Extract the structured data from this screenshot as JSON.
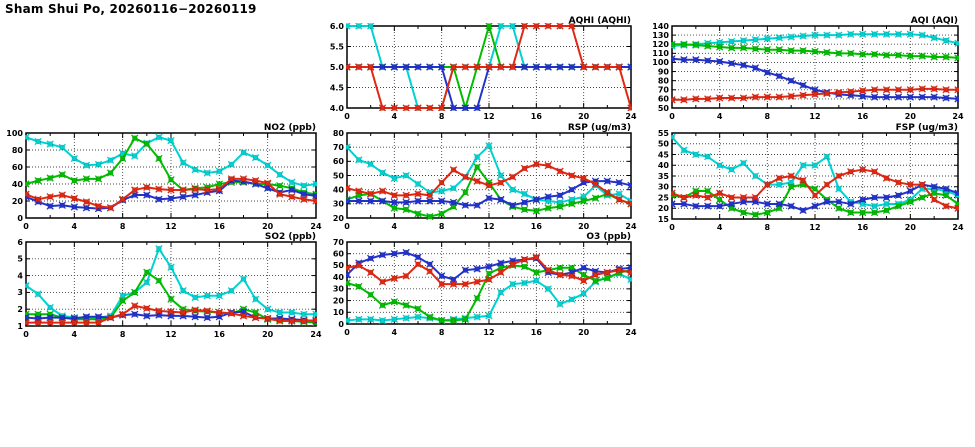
{
  "page_title": "Sham Shui Po, 20260116−20260119",
  "x_axis": {
    "min": 0,
    "max": 24,
    "major_ticks": [
      0,
      4,
      8,
      12,
      16,
      20,
      24
    ],
    "minor_ticks": [
      2,
      6,
      10,
      14,
      18,
      22
    ]
  },
  "series_colors": {
    "cyan": "#00d2d2",
    "green": "#00bd00",
    "blue": "#2233cc",
    "red": "#e02812"
  },
  "chart_data": [
    {
      "id": "aqhi",
      "type": "line",
      "title": "AQHI (AQHI)",
      "ylim": [
        4,
        6
      ],
      "yticks": [
        4,
        4.5,
        5,
        5.5,
        6
      ],
      "ytick_labels": [
        "4.0",
        "4.5",
        "5.0",
        "5.5",
        "6.0"
      ],
      "x": [
        0,
        1,
        2,
        3,
        4,
        5,
        6,
        7,
        8,
        9,
        10,
        11,
        12,
        13,
        14,
        15,
        16,
        17,
        18,
        19,
        20,
        21,
        22,
        23,
        24
      ],
      "series": [
        {
          "name": "cyan",
          "color": "#00d2d2",
          "values": [
            6,
            6,
            6,
            5,
            5,
            5,
            4,
            4,
            4,
            5,
            5,
            5,
            5,
            6,
            6,
            5,
            5,
            5,
            5,
            5,
            5,
            5,
            5,
            5,
            5
          ]
        },
        {
          "name": "green",
          "color": "#00bd00",
          "values": [
            5,
            5,
            5,
            5,
            5,
            5,
            5,
            5,
            5,
            5,
            4,
            5,
            6,
            5,
            5,
            5,
            5,
            5,
            5,
            5,
            5,
            5,
            5,
            5,
            5
          ]
        },
        {
          "name": "blue",
          "color": "#2233cc",
          "values": [
            5,
            5,
            5,
            5,
            5,
            5,
            5,
            5,
            5,
            4,
            4,
            4,
            5,
            5,
            5,
            5,
            5,
            5,
            5,
            5,
            5,
            5,
            5,
            5,
            5
          ]
        },
        {
          "name": "red",
          "color": "#e02812",
          "values": [
            5,
            5,
            5,
            4,
            4,
            4,
            4,
            4,
            4,
            5,
            5,
            5,
            5,
            5,
            5,
            6,
            6,
            6,
            6,
            6,
            5,
            5,
            5,
            5,
            4
          ]
        }
      ]
    },
    {
      "id": "aqi",
      "type": "line",
      "title": "AQI (AQI)",
      "ylim": [
        50,
        140
      ],
      "yticks": [
        50,
        60,
        70,
        80,
        90,
        100,
        110,
        120,
        130,
        140
      ],
      "ytick_labels": [
        "50",
        "60",
        "70",
        "80",
        "90",
        "100",
        "110",
        "120",
        "130",
        "140"
      ],
      "x": [
        0,
        1,
        2,
        3,
        4,
        5,
        6,
        7,
        8,
        9,
        10,
        11,
        12,
        13,
        14,
        15,
        16,
        17,
        18,
        19,
        20,
        21,
        22,
        23,
        24
      ],
      "series": [
        {
          "name": "cyan",
          "color": "#00d2d2",
          "values": [
            118,
            119,
            120,
            121,
            122,
            123,
            124,
            125,
            126,
            127,
            128,
            129,
            130,
            130,
            130,
            131,
            131,
            131,
            131,
            131,
            131,
            130,
            127,
            124,
            121
          ]
        },
        {
          "name": "green",
          "color": "#00bd00",
          "values": [
            120,
            120,
            119,
            118,
            117,
            116,
            116,
            115,
            114,
            114,
            113,
            113,
            112,
            111,
            110,
            110,
            109,
            109,
            108,
            108,
            107,
            107,
            106,
            106,
            105
          ]
        },
        {
          "name": "blue",
          "color": "#2233cc",
          "values": [
            104,
            103,
            103,
            102,
            101,
            99,
            97,
            94,
            89,
            85,
            80,
            75,
            70,
            67,
            65,
            64,
            63,
            62,
            62,
            62,
            62,
            62,
            62,
            61,
            60
          ]
        },
        {
          "name": "red",
          "color": "#e02812",
          "values": [
            59,
            59,
            60,
            60,
            61,
            61,
            61,
            62,
            62,
            62,
            63,
            64,
            65,
            66,
            67,
            68,
            69,
            70,
            70,
            70,
            70,
            71,
            71,
            70,
            70
          ]
        }
      ]
    },
    {
      "id": "no2",
      "type": "line",
      "title": "NO2 (ppb)",
      "ylim": [
        0,
        100
      ],
      "yticks": [
        0,
        20,
        40,
        60,
        80,
        100
      ],
      "ytick_labels": [
        "0",
        "20",
        "40",
        "60",
        "80",
        "100"
      ],
      "x": [
        0,
        1,
        2,
        3,
        4,
        5,
        6,
        7,
        8,
        9,
        10,
        11,
        12,
        13,
        14,
        15,
        16,
        17,
        18,
        19,
        20,
        21,
        22,
        23,
        24
      ],
      "series": [
        {
          "name": "cyan",
          "color": "#00d2d2",
          "values": [
            95,
            90,
            87,
            83,
            70,
            62,
            63,
            68,
            76,
            73,
            88,
            95,
            91,
            65,
            57,
            53,
            55,
            63,
            77,
            71,
            62,
            51,
            42,
            38,
            40
          ]
        },
        {
          "name": "green",
          "color": "#00bd00",
          "values": [
            40,
            44,
            47,
            51,
            44,
            46,
            46,
            53,
            70,
            94,
            87,
            70,
            45,
            33,
            35,
            36,
            40,
            42,
            42,
            40,
            40,
            38,
            35,
            30,
            28
          ]
        },
        {
          "name": "blue",
          "color": "#2233cc",
          "values": [
            25,
            19,
            14,
            15,
            13,
            12,
            11,
            12,
            21,
            27,
            27,
            22,
            23,
            25,
            27,
            30,
            32,
            44,
            43,
            40,
            35,
            30,
            33,
            28,
            26
          ]
        },
        {
          "name": "red",
          "color": "#e02812",
          "values": [
            28,
            22,
            25,
            27,
            23,
            19,
            14,
            12,
            22,
            33,
            36,
            34,
            33,
            33,
            34,
            33,
            34,
            46,
            46,
            44,
            41,
            28,
            25,
            22,
            20
          ]
        }
      ]
    },
    {
      "id": "rsp",
      "type": "line",
      "title": "RSP (ug/m3)",
      "ylim": [
        20,
        80
      ],
      "yticks": [
        20,
        30,
        40,
        50,
        60,
        70,
        80
      ],
      "ytick_labels": [
        "20",
        "30",
        "40",
        "50",
        "60",
        "70",
        "80"
      ],
      "x": [
        0,
        1,
        2,
        3,
        4,
        5,
        6,
        7,
        8,
        9,
        10,
        11,
        12,
        13,
        14,
        15,
        16,
        17,
        18,
        19,
        20,
        21,
        22,
        23,
        24
      ],
      "series": [
        {
          "name": "cyan",
          "color": "#00d2d2",
          "values": [
            70,
            61,
            58,
            52,
            48,
            50,
            44,
            38,
            39,
            41,
            49,
            63,
            71,
            50,
            40,
            37,
            33,
            32,
            31,
            33,
            35,
            43,
            36,
            37,
            32
          ]
        },
        {
          "name": "green",
          "color": "#00bd00",
          "values": [
            33,
            36,
            37,
            32,
            27,
            26,
            23,
            21,
            23,
            28,
            38,
            56,
            45,
            33,
            28,
            26,
            25,
            27,
            28,
            30,
            32,
            34,
            37,
            33,
            30
          ]
        },
        {
          "name": "blue",
          "color": "#2233cc",
          "values": [
            32,
            32,
            32,
            32,
            31,
            31,
            32,
            32,
            32,
            31,
            29,
            29,
            34,
            33,
            29,
            31,
            33,
            35,
            36,
            40,
            45,
            46,
            46,
            45,
            43
          ]
        },
        {
          "name": "red",
          "color": "#e02812",
          "values": [
            41,
            39,
            37,
            39,
            36,
            36,
            37,
            36,
            45,
            54,
            49,
            46,
            43,
            45,
            49,
            55,
            58,
            57,
            53,
            50,
            48,
            44,
            38,
            33,
            30
          ]
        }
      ]
    },
    {
      "id": "fsp",
      "type": "line",
      "title": "FSP (ug/m3)",
      "ylim": [
        15,
        55
      ],
      "yticks": [
        15,
        20,
        25,
        30,
        35,
        40,
        45,
        50,
        55
      ],
      "ytick_labels": [
        "15",
        "20",
        "25",
        "30",
        "35",
        "40",
        "45",
        "50",
        "55"
      ],
      "x": [
        0,
        1,
        2,
        3,
        4,
        5,
        6,
        7,
        8,
        9,
        10,
        11,
        12,
        13,
        14,
        15,
        16,
        17,
        18,
        19,
        20,
        21,
        22,
        23,
        24
      ],
      "series": [
        {
          "name": "cyan",
          "color": "#00d2d2",
          "values": [
            53,
            47,
            45,
            44,
            40,
            38,
            41,
            35,
            31,
            31,
            32,
            40,
            40,
            44,
            29,
            23,
            22,
            21,
            22,
            22,
            24,
            29,
            29,
            28,
            26
          ]
        },
        {
          "name": "green",
          "color": "#00bd00",
          "values": [
            26,
            25,
            28,
            28,
            24,
            20,
            18,
            17,
            18,
            20,
            30,
            31,
            29,
            24,
            20,
            18,
            18,
            18,
            19,
            21,
            23,
            25,
            27,
            26,
            22
          ]
        },
        {
          "name": "blue",
          "color": "#2233cc",
          "values": [
            22,
            22,
            21,
            21,
            21,
            22,
            23,
            23,
            22,
            22,
            21,
            19,
            21,
            23,
            23,
            22,
            24,
            25,
            25,
            26,
            28,
            31,
            30,
            29,
            27
          ]
        },
        {
          "name": "red",
          "color": "#e02812",
          "values": [
            27,
            25,
            26,
            25,
            27,
            25,
            25,
            25,
            31,
            34,
            35,
            33,
            26,
            31,
            35,
            37,
            38,
            37,
            34,
            32,
            31,
            31,
            24,
            21,
            20
          ]
        }
      ]
    },
    {
      "id": "so2",
      "type": "line",
      "title": "SO2 (ppb)",
      "ylim": [
        1,
        6
      ],
      "yticks": [
        1,
        2,
        3,
        4,
        5,
        6
      ],
      "ytick_labels": [
        "1",
        "2",
        "3",
        "4",
        "5",
        "6"
      ],
      "x": [
        0,
        1,
        2,
        3,
        4,
        5,
        6,
        7,
        8,
        9,
        10,
        11,
        12,
        13,
        14,
        15,
        16,
        17,
        18,
        19,
        20,
        21,
        22,
        23,
        24
      ],
      "series": [
        {
          "name": "cyan",
          "color": "#00d2d2",
          "values": [
            3.4,
            2.9,
            2.1,
            1.6,
            1.5,
            1.5,
            1.5,
            1.6,
            2.8,
            3.0,
            3.6,
            5.6,
            4.5,
            3.1,
            2.7,
            2.8,
            2.8,
            3.1,
            3.8,
            2.6,
            2.0,
            1.8,
            1.8,
            1.7,
            1.7
          ]
        },
        {
          "name": "green",
          "color": "#00bd00",
          "values": [
            1.7,
            1.7,
            1.7,
            1.5,
            1.4,
            1.4,
            1.4,
            1.5,
            2.5,
            3.0,
            4.2,
            3.7,
            2.6,
            2.0,
            1.9,
            1.85,
            1.8,
            1.75,
            2.0,
            1.8,
            1.4,
            1.35,
            1.3,
            1.25,
            1.2
          ]
        },
        {
          "name": "blue",
          "color": "#2233cc",
          "values": [
            1.5,
            1.45,
            1.5,
            1.5,
            1.45,
            1.55,
            1.55,
            1.5,
            1.65,
            1.7,
            1.6,
            1.65,
            1.6,
            1.6,
            1.55,
            1.5,
            1.55,
            1.8,
            1.85,
            1.5,
            1.45,
            1.45,
            1.4,
            1.35,
            1.3
          ]
        },
        {
          "name": "red",
          "color": "#e02812",
          "values": [
            1.2,
            1.2,
            1.2,
            1.2,
            1.2,
            1.2,
            1.2,
            1.5,
            1.7,
            2.2,
            2.05,
            1.9,
            1.85,
            1.8,
            1.95,
            1.9,
            1.8,
            1.75,
            1.6,
            1.5,
            1.45,
            1.3,
            1.3,
            1.3,
            1.35
          ]
        }
      ]
    },
    {
      "id": "o3",
      "type": "line",
      "title": "O3 (ppb)",
      "ylim": [
        0,
        70
      ],
      "yticks": [
        0,
        10,
        20,
        30,
        40,
        50,
        60,
        70
      ],
      "ytick_labels": [
        "0",
        "10",
        "20",
        "30",
        "40",
        "50",
        "60",
        "70"
      ],
      "x": [
        0,
        1,
        2,
        3,
        4,
        5,
        6,
        7,
        8,
        9,
        10,
        11,
        12,
        13,
        14,
        15,
        16,
        17,
        18,
        19,
        20,
        21,
        22,
        23,
        24
      ],
      "series": [
        {
          "name": "cyan",
          "color": "#00d2d2",
          "values": [
            3,
            4,
            4,
            3,
            4,
            5,
            6,
            5,
            3,
            4,
            5,
            6,
            7,
            27,
            34,
            35,
            37,
            30,
            17,
            21,
            26,
            36,
            40,
            43,
            38
          ]
        },
        {
          "name": "green",
          "color": "#00bd00",
          "values": [
            35,
            32,
            25,
            16,
            19,
            16,
            13,
            6,
            3,
            3,
            4,
            22,
            43,
            48,
            50,
            49,
            44,
            46,
            48,
            48,
            42,
            37,
            39,
            44,
            46
          ]
        },
        {
          "name": "blue",
          "color": "#2233cc",
          "values": [
            42,
            52,
            56,
            59,
            60,
            61,
            57,
            51,
            41,
            38,
            46,
            47,
            49,
            52,
            54,
            55,
            56,
            44,
            42,
            44,
            48,
            45,
            44,
            47,
            48
          ]
        },
        {
          "name": "red",
          "color": "#e02812",
          "values": [
            48,
            50,
            44,
            36,
            39,
            41,
            51,
            45,
            34,
            34,
            34,
            36,
            38,
            44,
            51,
            55,
            57,
            46,
            42,
            41,
            37,
            42,
            44,
            46,
            44
          ]
        }
      ]
    }
  ]
}
